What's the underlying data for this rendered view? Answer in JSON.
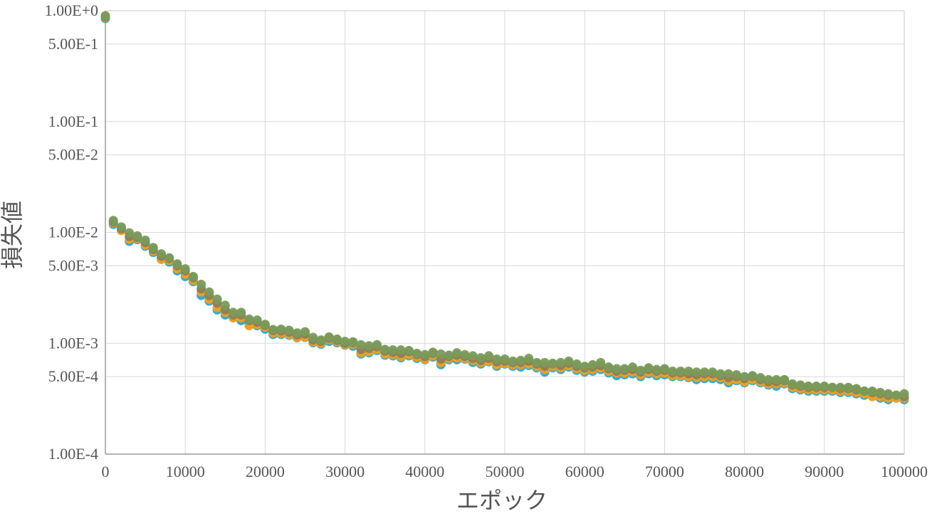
{
  "chart_data": {
    "type": "scatter",
    "title": "",
    "xlabel": "エポック",
    "ylabel": "損失値",
    "x_scale": "linear",
    "y_scale": "log",
    "xlim": [
      0,
      100000
    ],
    "ylim": [
      0.0001,
      1
    ],
    "grid": true,
    "legend": "none",
    "x_ticks": [
      0,
      10000,
      20000,
      30000,
      40000,
      50000,
      60000,
      70000,
      80000,
      90000,
      100000
    ],
    "x_tick_labels": [
      "0",
      "10000",
      "20000",
      "30000",
      "40000",
      "50000",
      "60000",
      "70000",
      "80000",
      "90000",
      "100000"
    ],
    "y_ticks": [
      1,
      0.5,
      0.1,
      0.05,
      0.01,
      0.005,
      0.001,
      0.0005,
      0.0001
    ],
    "y_tick_labels": [
      "1.00E+0",
      "5.00E-1",
      "1.00E-1",
      "5.00E-2",
      "1.00E-2",
      "5.00E-3",
      "1.00E-3",
      "5.00E-4",
      "1.00E-4"
    ],
    "x": [
      0,
      1000,
      2000,
      3000,
      4000,
      5000,
      6000,
      7000,
      8000,
      9000,
      10000,
      11000,
      12000,
      13000,
      14000,
      15000,
      16000,
      17000,
      18000,
      19000,
      20000,
      21000,
      22000,
      23000,
      24000,
      25000,
      26000,
      27000,
      28000,
      29000,
      30000,
      31000,
      32000,
      33000,
      34000,
      35000,
      36000,
      37000,
      38000,
      39000,
      40000,
      41000,
      42000,
      43000,
      44000,
      45000,
      46000,
      47000,
      48000,
      49000,
      50000,
      51000,
      52000,
      53000,
      54000,
      55000,
      56000,
      57000,
      58000,
      59000,
      60000,
      61000,
      62000,
      63000,
      64000,
      65000,
      66000,
      67000,
      68000,
      69000,
      70000,
      71000,
      72000,
      73000,
      74000,
      75000,
      76000,
      77000,
      78000,
      79000,
      80000,
      81000,
      82000,
      83000,
      84000,
      85000,
      86000,
      87000,
      88000,
      89000,
      90000,
      91000,
      92000,
      93000,
      94000,
      95000,
      96000,
      97000,
      98000,
      99000,
      100000
    ],
    "series": [
      {
        "color": "#2fa4c8",
        "values": [
          0.85,
          0.0118,
          0.0106,
          0.0083,
          0.0086,
          0.0075,
          0.0066,
          0.0058,
          0.0054,
          0.0045,
          0.004,
          0.0036,
          0.0027,
          0.0024,
          0.002,
          0.0018,
          0.0017,
          0.0016,
          0.00146,
          0.00144,
          0.00134,
          0.0012,
          0.0012,
          0.00118,
          0.00112,
          0.00113,
          0.00101,
          0.00098,
          0.00104,
          0.00101,
          0.00096,
          0.00094,
          0.0008,
          0.00082,
          0.00086,
          0.00078,
          0.00077,
          0.00074,
          0.00077,
          0.00073,
          0.00071,
          0.00075,
          0.00064,
          0.00071,
          0.00071,
          0.00072,
          0.00067,
          0.00065,
          0.00068,
          0.00062,
          0.00065,
          0.00062,
          0.00061,
          0.00063,
          0.0006,
          0.00055,
          0.0006,
          0.00058,
          0.00061,
          0.00057,
          0.00055,
          0.00056,
          0.00058,
          0.00054,
          0.00051,
          0.00052,
          0.00053,
          0.0005,
          0.00053,
          0.00051,
          0.00052,
          0.0005,
          0.0005,
          0.00049,
          0.00047,
          0.00048,
          0.00048,
          0.00047,
          0.00044,
          0.00046,
          0.00044,
          0.00046,
          0.00044,
          0.00042,
          0.00041,
          0.00043,
          0.00039,
          0.00038,
          0.00037,
          0.00037,
          0.00037,
          0.00037,
          0.00036,
          0.00036,
          0.00035,
          0.00034,
          0.00034,
          0.00032,
          0.00031,
          0.00032,
          0.00031
        ]
      },
      {
        "color": "#f0a020",
        "values": [
          0.87,
          0.0122,
          0.0104,
          0.0087,
          0.0088,
          0.0077,
          0.0068,
          0.0057,
          0.0056,
          0.0047,
          0.0042,
          0.0037,
          0.0029,
          0.0025,
          0.0021,
          0.0019,
          0.0017,
          0.0017,
          0.00144,
          0.00148,
          0.0014,
          0.00124,
          0.00123,
          0.0012,
          0.00113,
          0.00114,
          0.00103,
          0.001,
          0.00108,
          0.00103,
          0.00097,
          0.00098,
          0.00082,
          0.00084,
          0.00088,
          0.0008,
          0.00079,
          0.00076,
          0.00079,
          0.00075,
          0.00072,
          0.00077,
          0.00067,
          0.00073,
          0.00074,
          0.00073,
          0.0007,
          0.00067,
          0.00069,
          0.00064,
          0.00066,
          0.00064,
          0.00064,
          0.00065,
          0.00062,
          0.00058,
          0.00062,
          0.0006,
          0.00063,
          0.00059,
          0.00057,
          0.00058,
          0.0006,
          0.00056,
          0.00054,
          0.00054,
          0.00055,
          0.00052,
          0.00055,
          0.00053,
          0.00054,
          0.00051,
          0.00051,
          0.0005,
          0.00049,
          0.0005,
          0.0005,
          0.00049,
          0.00046,
          0.00047,
          0.00045,
          0.00047,
          0.00045,
          0.00043,
          0.00043,
          0.00044,
          0.0004,
          0.00039,
          0.00038,
          0.00038,
          0.00038,
          0.00038,
          0.00037,
          0.00037,
          0.00036,
          0.00035,
          0.00033,
          0.00033,
          0.00032,
          0.00032,
          0.00032
        ]
      },
      {
        "color": "#8c7e5a",
        "values": [
          0.88,
          0.0124,
          0.0108,
          0.0092,
          0.009,
          0.0081,
          0.007,
          0.0061,
          0.0058,
          0.005,
          0.0045,
          0.0039,
          0.0031,
          0.0027,
          0.0023,
          0.002,
          0.0018,
          0.0018,
          0.0016,
          0.00155,
          0.00145,
          0.0013,
          0.00129,
          0.00126,
          0.00119,
          0.00121,
          0.00107,
          0.00104,
          0.00111,
          0.00106,
          0.001,
          0.00101,
          0.00088,
          0.0009,
          0.00093,
          0.00085,
          0.00083,
          0.00081,
          0.00084,
          0.00079,
          0.00076,
          0.00081,
          0.00072,
          0.00076,
          0.00078,
          0.00076,
          0.00073,
          0.0007,
          0.00073,
          0.00068,
          0.00069,
          0.00067,
          0.00067,
          0.00069,
          0.00065,
          0.00062,
          0.00065,
          0.00063,
          0.00066,
          0.00062,
          0.0006,
          0.00061,
          0.00063,
          0.00059,
          0.00056,
          0.00057,
          0.00058,
          0.00055,
          0.00058,
          0.00056,
          0.00057,
          0.00054,
          0.00054,
          0.00053,
          0.00052,
          0.00053,
          0.00053,
          0.00051,
          0.00049,
          0.0005,
          0.00048,
          0.0005,
          0.00047,
          0.00045,
          0.00045,
          0.00046,
          0.00042,
          0.00041,
          0.0004,
          0.0004,
          0.0004,
          0.0004,
          0.00039,
          0.00039,
          0.00038,
          0.00037,
          0.00036,
          0.00035,
          0.00034,
          0.00034,
          0.00033
        ]
      },
      {
        "color": "#7a9a5a",
        "values": [
          0.9,
          0.0128,
          0.0112,
          0.0099,
          0.0093,
          0.0085,
          0.0073,
          0.0064,
          0.0059,
          0.0052,
          0.0047,
          0.004,
          0.0034,
          0.0029,
          0.0025,
          0.0022,
          0.0019,
          0.0019,
          0.00165,
          0.00162,
          0.00148,
          0.00133,
          0.00134,
          0.00131,
          0.00124,
          0.00127,
          0.00113,
          0.00107,
          0.00114,
          0.00109,
          0.00104,
          0.00103,
          0.00097,
          0.00095,
          0.00097,
          0.00088,
          0.00087,
          0.00087,
          0.00086,
          0.00081,
          0.00079,
          0.00083,
          0.0008,
          0.00078,
          0.00082,
          0.00079,
          0.00077,
          0.00074,
          0.00077,
          0.00072,
          0.00072,
          0.00069,
          0.0007,
          0.00073,
          0.00067,
          0.00067,
          0.00066,
          0.00067,
          0.00069,
          0.00065,
          0.00062,
          0.00064,
          0.00067,
          0.00061,
          0.00059,
          0.00059,
          0.00061,
          0.00057,
          0.0006,
          0.00058,
          0.00059,
          0.00056,
          0.00056,
          0.00056,
          0.00055,
          0.00055,
          0.00055,
          0.00053,
          0.00053,
          0.00052,
          0.0005,
          0.00051,
          0.00049,
          0.00047,
          0.00047,
          0.00047,
          0.00043,
          0.00042,
          0.00041,
          0.00041,
          0.00041,
          0.0004,
          0.0004,
          0.0004,
          0.00039,
          0.00037,
          0.00037,
          0.00036,
          0.00035,
          0.00034,
          0.00035
        ]
      }
    ]
  }
}
